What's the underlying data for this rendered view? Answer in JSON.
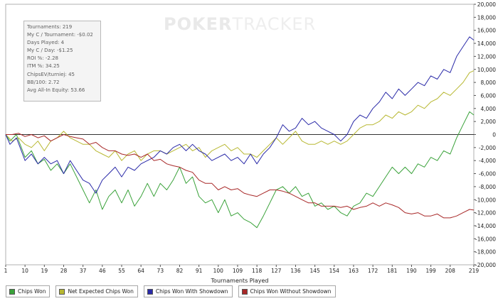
{
  "watermark": {
    "bold": "POKER",
    "light": "TRACKER"
  },
  "stats": [
    "Tournaments: 219",
    "My C / Tournament: -$0.02",
    "Days Played: 4",
    "My C / Day: -$1.25",
    "ROI %: -2.28",
    "ITM %: 34.25",
    "ChipsEV/turniej: 45",
    "BB/100: 2.72",
    "Avg All-In Equity: 53.66"
  ],
  "legend": [
    {
      "label": "Chips Won",
      "color": "#3aa23a"
    },
    {
      "label": "Net Expected Chips Won",
      "color": "#b8b832"
    },
    {
      "label": "Chips Won With Showdown",
      "color": "#2a2aa8"
    },
    {
      "label": "Chips Won Without Showdown",
      "color": "#a82828"
    }
  ],
  "chart_data": {
    "type": "line",
    "xlabel": "Tournaments Played",
    "ylabel": "",
    "xlim": [
      1,
      219
    ],
    "ylim": [
      -20000,
      20000
    ],
    "x_ticks": [
      1,
      10,
      19,
      28,
      37,
      46,
      55,
      64,
      73,
      82,
      91,
      100,
      109,
      118,
      127,
      136,
      145,
      154,
      163,
      172,
      181,
      190,
      199,
      208,
      219
    ],
    "y_ticks": [
      20000,
      18000,
      16000,
      14000,
      12000,
      10000,
      8000,
      6000,
      4000,
      2000,
      0,
      -2000,
      -4000,
      -6000,
      -8000,
      -10000,
      -12000,
      -14000,
      -16000,
      -18000,
      -20000
    ],
    "y_tick_labels": [
      "20,000",
      "18,000",
      "16,000",
      "14,000",
      "12,000",
      "10,000",
      "8,000",
      "6,000",
      "4,000",
      "2,000",
      "0",
      "-2,000",
      "-4,000",
      "-6,000",
      "-8,000",
      "-10,000",
      "-12,000",
      "-14,000",
      "-16,000",
      "-18,000",
      "-20,000"
    ],
    "grid": false,
    "legend_position": "bottom",
    "series": [
      {
        "name": "Chips Won",
        "color": "#3aa23a",
        "points": [
          [
            1,
            0
          ],
          [
            3,
            -1000
          ],
          [
            6,
            0
          ],
          [
            10,
            -3500
          ],
          [
            13,
            -2500
          ],
          [
            16,
            -4500
          ],
          [
            19,
            -3800
          ],
          [
            22,
            -5500
          ],
          [
            25,
            -4500
          ],
          [
            28,
            -6000
          ],
          [
            31,
            -4500
          ],
          [
            37,
            -8500
          ],
          [
            40,
            -10500
          ],
          [
            43,
            -8500
          ],
          [
            46,
            -11500
          ],
          [
            49,
            -9500
          ],
          [
            52,
            -8500
          ],
          [
            55,
            -10500
          ],
          [
            58,
            -8500
          ],
          [
            61,
            -11000
          ],
          [
            64,
            -9500
          ],
          [
            67,
            -7500
          ],
          [
            70,
            -9500
          ],
          [
            73,
            -7500
          ],
          [
            76,
            -8500
          ],
          [
            79,
            -7000
          ],
          [
            82,
            -5000
          ],
          [
            85,
            -7500
          ],
          [
            88,
            -6500
          ],
          [
            91,
            -9500
          ],
          [
            94,
            -10500
          ],
          [
            97,
            -10000
          ],
          [
            100,
            -12000
          ],
          [
            103,
            -10000
          ],
          [
            106,
            -12500
          ],
          [
            109,
            -12000
          ],
          [
            112,
            -13000
          ],
          [
            115,
            -13500
          ],
          [
            118,
            -14300
          ],
          [
            121,
            -12500
          ],
          [
            124,
            -10500
          ],
          [
            127,
            -8500
          ],
          [
            130,
            -8000
          ],
          [
            133,
            -9000
          ],
          [
            136,
            -8000
          ],
          [
            139,
            -9500
          ],
          [
            142,
            -9000
          ],
          [
            145,
            -11000
          ],
          [
            148,
            -10500
          ],
          [
            151,
            -11500
          ],
          [
            154,
            -11000
          ],
          [
            157,
            -12000
          ],
          [
            160,
            -12500
          ],
          [
            163,
            -11000
          ],
          [
            166,
            -10500
          ],
          [
            169,
            -9000
          ],
          [
            172,
            -9500
          ],
          [
            175,
            -8000
          ],
          [
            178,
            -6500
          ],
          [
            181,
            -5000
          ],
          [
            184,
            -6000
          ],
          [
            187,
            -5000
          ],
          [
            190,
            -6000
          ],
          [
            193,
            -4500
          ],
          [
            196,
            -5000
          ],
          [
            199,
            -3500
          ],
          [
            202,
            -4000
          ],
          [
            205,
            -2500
          ],
          [
            208,
            -3000
          ],
          [
            211,
            -500
          ],
          [
            214,
            1500
          ],
          [
            217,
            3500
          ],
          [
            219,
            3000
          ]
        ]
      },
      {
        "name": "Net Expected Chips Won",
        "color": "#b8b832",
        "points": [
          [
            1,
            0
          ],
          [
            4,
            -1000
          ],
          [
            7,
            -500
          ],
          [
            10,
            -1500
          ],
          [
            13,
            -2000
          ],
          [
            16,
            -1000
          ],
          [
            19,
            -2500
          ],
          [
            22,
            -1000
          ],
          [
            25,
            -500
          ],
          [
            28,
            500
          ],
          [
            31,
            -500
          ],
          [
            34,
            -1000
          ],
          [
            37,
            -1500
          ],
          [
            40,
            -1500
          ],
          [
            43,
            -2500
          ],
          [
            46,
            -3000
          ],
          [
            49,
            -3500
          ],
          [
            52,
            -2500
          ],
          [
            55,
            -4000
          ],
          [
            58,
            -3000
          ],
          [
            61,
            -2500
          ],
          [
            64,
            -4000
          ],
          [
            67,
            -3000
          ],
          [
            70,
            -2500
          ],
          [
            73,
            -2500
          ],
          [
            76,
            -3000
          ],
          [
            79,
            -2500
          ],
          [
            82,
            -2000
          ],
          [
            85,
            -1500
          ],
          [
            88,
            -2500
          ],
          [
            91,
            -2000
          ],
          [
            94,
            -3500
          ],
          [
            97,
            -2500
          ],
          [
            100,
            -2000
          ],
          [
            103,
            -1500
          ],
          [
            106,
            -2500
          ],
          [
            109,
            -2000
          ],
          [
            112,
            -3000
          ],
          [
            115,
            -3000
          ],
          [
            118,
            -3500
          ],
          [
            121,
            -2500
          ],
          [
            124,
            -1500
          ],
          [
            127,
            -500
          ],
          [
            130,
            -1500
          ],
          [
            133,
            -500
          ],
          [
            136,
            500
          ],
          [
            139,
            -1000
          ],
          [
            142,
            -1500
          ],
          [
            145,
            -1500
          ],
          [
            148,
            -1000
          ],
          [
            151,
            -1500
          ],
          [
            154,
            -1000
          ],
          [
            157,
            -1500
          ],
          [
            160,
            -1000
          ],
          [
            163,
            0
          ],
          [
            166,
            1000
          ],
          [
            169,
            1500
          ],
          [
            172,
            1500
          ],
          [
            175,
            2000
          ],
          [
            178,
            3000
          ],
          [
            181,
            2500
          ],
          [
            184,
            3500
          ],
          [
            187,
            3000
          ],
          [
            190,
            3500
          ],
          [
            193,
            4500
          ],
          [
            196,
            4000
          ],
          [
            199,
            5000
          ],
          [
            202,
            5500
          ],
          [
            205,
            6500
          ],
          [
            208,
            6000
          ],
          [
            211,
            7000
          ],
          [
            214,
            8000
          ],
          [
            217,
            9500
          ],
          [
            219,
            9800
          ]
        ]
      },
      {
        "name": "Chips Won With Showdown",
        "color": "#2a2aa8",
        "points": [
          [
            1,
            0
          ],
          [
            3,
            -1500
          ],
          [
            6,
            -500
          ],
          [
            10,
            -4000
          ],
          [
            13,
            -3000
          ],
          [
            16,
            -4500
          ],
          [
            19,
            -3500
          ],
          [
            22,
            -4500
          ],
          [
            25,
            -4000
          ],
          [
            28,
            -6000
          ],
          [
            31,
            -4000
          ],
          [
            34,
            -5500
          ],
          [
            37,
            -7000
          ],
          [
            40,
            -7500
          ],
          [
            43,
            -9000
          ],
          [
            46,
            -7000
          ],
          [
            49,
            -6000
          ],
          [
            52,
            -5000
          ],
          [
            55,
            -6500
          ],
          [
            58,
            -5000
          ],
          [
            61,
            -5500
          ],
          [
            64,
            -4500
          ],
          [
            67,
            -4000
          ],
          [
            70,
            -3500
          ],
          [
            73,
            -2500
          ],
          [
            76,
            -3000
          ],
          [
            79,
            -2000
          ],
          [
            82,
            -1500
          ],
          [
            85,
            -2500
          ],
          [
            88,
            -1500
          ],
          [
            91,
            -2500
          ],
          [
            94,
            -3000
          ],
          [
            97,
            -4000
          ],
          [
            100,
            -3500
          ],
          [
            103,
            -3000
          ],
          [
            106,
            -4000
          ],
          [
            109,
            -3500
          ],
          [
            112,
            -4500
          ],
          [
            115,
            -3000
          ],
          [
            118,
            -4500
          ],
          [
            121,
            -3000
          ],
          [
            124,
            -2000
          ],
          [
            127,
            -500
          ],
          [
            130,
            1500
          ],
          [
            133,
            500
          ],
          [
            136,
            1000
          ],
          [
            139,
            2500
          ],
          [
            142,
            1500
          ],
          [
            145,
            2000
          ],
          [
            148,
            1000
          ],
          [
            151,
            500
          ],
          [
            154,
            0
          ],
          [
            157,
            -1000
          ],
          [
            160,
            0
          ],
          [
            163,
            2000
          ],
          [
            166,
            3000
          ],
          [
            169,
            2500
          ],
          [
            172,
            4000
          ],
          [
            175,
            5000
          ],
          [
            178,
            6500
          ],
          [
            181,
            5500
          ],
          [
            184,
            7000
          ],
          [
            187,
            6000
          ],
          [
            190,
            7000
          ],
          [
            193,
            8000
          ],
          [
            196,
            7500
          ],
          [
            199,
            9000
          ],
          [
            202,
            8500
          ],
          [
            205,
            10000
          ],
          [
            208,
            9500
          ],
          [
            211,
            12000
          ],
          [
            214,
            13500
          ],
          [
            217,
            15000
          ],
          [
            219,
            14500
          ]
        ]
      },
      {
        "name": "Chips Won Without Showdown",
        "color": "#a82828",
        "points": [
          [
            1,
            0
          ],
          [
            4,
            0
          ],
          [
            7,
            200
          ],
          [
            10,
            -300
          ],
          [
            13,
            0
          ],
          [
            16,
            -500
          ],
          [
            19,
            -200
          ],
          [
            22,
            -1000
          ],
          [
            25,
            -500
          ],
          [
            28,
            0
          ],
          [
            31,
            -300
          ],
          [
            34,
            -500
          ],
          [
            37,
            -700
          ],
          [
            40,
            -1500
          ],
          [
            43,
            -1200
          ],
          [
            46,
            -2000
          ],
          [
            49,
            -2500
          ],
          [
            52,
            -2500
          ],
          [
            55,
            -3000
          ],
          [
            58,
            -3200
          ],
          [
            61,
            -3000
          ],
          [
            64,
            -3500
          ],
          [
            67,
            -3000
          ],
          [
            70,
            -4000
          ],
          [
            73,
            -3800
          ],
          [
            76,
            -4500
          ],
          [
            79,
            -4800
          ],
          [
            82,
            -5000
          ],
          [
            85,
            -5500
          ],
          [
            88,
            -5800
          ],
          [
            91,
            -7000
          ],
          [
            94,
            -7500
          ],
          [
            97,
            -7500
          ],
          [
            100,
            -8500
          ],
          [
            103,
            -8000
          ],
          [
            106,
            -8500
          ],
          [
            109,
            -8300
          ],
          [
            112,
            -9000
          ],
          [
            115,
            -9300
          ],
          [
            118,
            -9500
          ],
          [
            121,
            -9000
          ],
          [
            124,
            -8500
          ],
          [
            127,
            -8500
          ],
          [
            130,
            -8700
          ],
          [
            133,
            -9000
          ],
          [
            136,
            -9500
          ],
          [
            139,
            -10000
          ],
          [
            142,
            -10500
          ],
          [
            145,
            -10500
          ],
          [
            148,
            -11000
          ],
          [
            151,
            -11000
          ],
          [
            154,
            -11000
          ],
          [
            157,
            -11200
          ],
          [
            160,
            -11000
          ],
          [
            163,
            -11500
          ],
          [
            166,
            -11200
          ],
          [
            169,
            -11000
          ],
          [
            172,
            -10500
          ],
          [
            175,
            -11000
          ],
          [
            178,
            -10500
          ],
          [
            181,
            -10800
          ],
          [
            184,
            -11200
          ],
          [
            187,
            -12000
          ],
          [
            190,
            -12200
          ],
          [
            193,
            -12000
          ],
          [
            196,
            -12500
          ],
          [
            199,
            -12500
          ],
          [
            202,
            -12200
          ],
          [
            205,
            -12800
          ],
          [
            208,
            -12800
          ],
          [
            211,
            -12500
          ],
          [
            214,
            -12000
          ],
          [
            217,
            -11500
          ],
          [
            219,
            -11600
          ]
        ]
      }
    ]
  }
}
